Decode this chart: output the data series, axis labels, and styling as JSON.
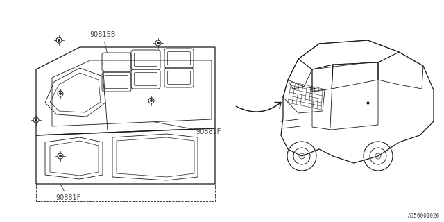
{
  "bg_color": "#ffffff",
  "line_color": "#1a1a1a",
  "label_color": "#444444",
  "part_label_1": "90815B",
  "part_label_2": "90881F",
  "part_label_3": "90881F",
  "diagram_id": "A956001026",
  "figsize": [
    6.4,
    3.2
  ],
  "dpi": 100,
  "lw_main": 0.9,
  "lw_thin": 0.6,
  "lw_dashed": 0.6,
  "font_size_label": 7.0,
  "font_size_id": 5.5
}
